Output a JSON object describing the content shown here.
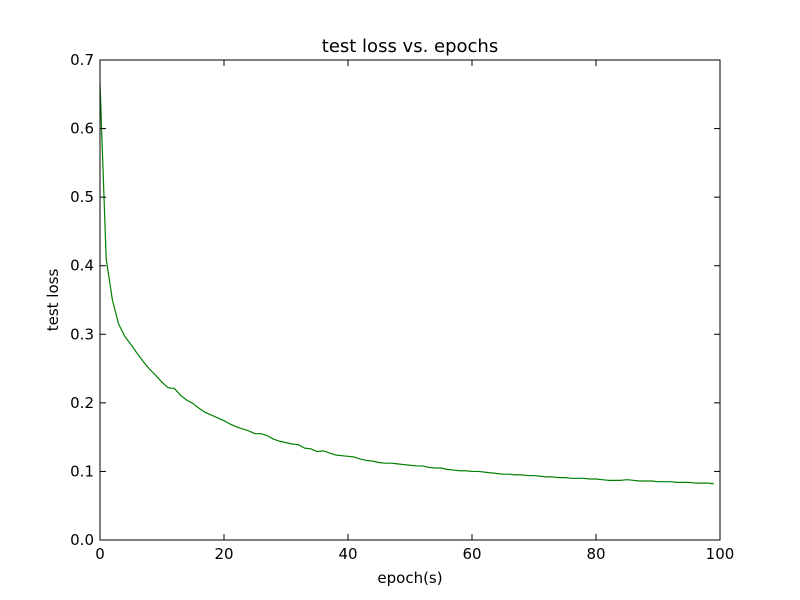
{
  "chart_data": {
    "type": "line",
    "title": "test loss vs. epochs",
    "xlabel": "epoch(s)",
    "ylabel": "test loss",
    "xlim": [
      0,
      100
    ],
    "ylim": [
      0,
      0.7
    ],
    "xticks": [
      0,
      20,
      40,
      60,
      80,
      100
    ],
    "yticks": [
      0.0,
      0.1,
      0.2,
      0.3,
      0.4,
      0.5,
      0.6,
      0.7
    ],
    "xtick_labels": [
      "0",
      "20",
      "40",
      "60",
      "80",
      "100"
    ],
    "ytick_labels": [
      "0.0",
      "0.1",
      "0.2",
      "0.3",
      "0.4",
      "0.5",
      "0.6",
      "0.7"
    ],
    "grid": false,
    "series": [
      {
        "color": "#008000",
        "x": [
          0,
          1,
          2,
          3,
          4,
          5,
          6,
          7,
          8,
          9,
          10,
          11,
          12,
          13,
          14,
          15,
          16,
          17,
          18,
          19,
          20,
          21,
          22,
          23,
          24,
          25,
          26,
          27,
          28,
          29,
          30,
          31,
          32,
          33,
          34,
          35,
          36,
          37,
          38,
          39,
          40,
          41,
          42,
          43,
          44,
          45,
          46,
          47,
          48,
          49,
          50,
          51,
          52,
          53,
          54,
          55,
          56,
          57,
          58,
          59,
          60,
          61,
          62,
          63,
          64,
          65,
          66,
          67,
          68,
          69,
          70,
          71,
          72,
          73,
          74,
          75,
          76,
          77,
          78,
          79,
          80,
          81,
          82,
          83,
          84,
          85,
          86,
          87,
          88,
          89,
          90,
          91,
          92,
          93,
          94,
          95,
          96,
          97,
          98,
          99
        ],
        "y": [
          0.665,
          0.41,
          0.35,
          0.315,
          0.297,
          0.285,
          0.272,
          0.26,
          0.249,
          0.24,
          0.23,
          0.222,
          0.221,
          0.211,
          0.204,
          0.199,
          0.192,
          0.186,
          0.182,
          0.178,
          0.174,
          0.169,
          0.165,
          0.162,
          0.159,
          0.155,
          0.155,
          0.152,
          0.147,
          0.144,
          0.142,
          0.14,
          0.139,
          0.134,
          0.133,
          0.129,
          0.13,
          0.127,
          0.124,
          0.123,
          0.122,
          0.121,
          0.118,
          0.116,
          0.115,
          0.113,
          0.112,
          0.112,
          0.111,
          0.11,
          0.109,
          0.108,
          0.108,
          0.106,
          0.105,
          0.105,
          0.103,
          0.102,
          0.101,
          0.101,
          0.1,
          0.1,
          0.099,
          0.098,
          0.097,
          0.096,
          0.096,
          0.095,
          0.095,
          0.094,
          0.094,
          0.093,
          0.092,
          0.092,
          0.091,
          0.091,
          0.09,
          0.09,
          0.09,
          0.089,
          0.089,
          0.088,
          0.087,
          0.087,
          0.087,
          0.088,
          0.087,
          0.086,
          0.086,
          0.086,
          0.085,
          0.085,
          0.085,
          0.084,
          0.084,
          0.084,
          0.083,
          0.083,
          0.083,
          0.082
        ]
      }
    ]
  }
}
